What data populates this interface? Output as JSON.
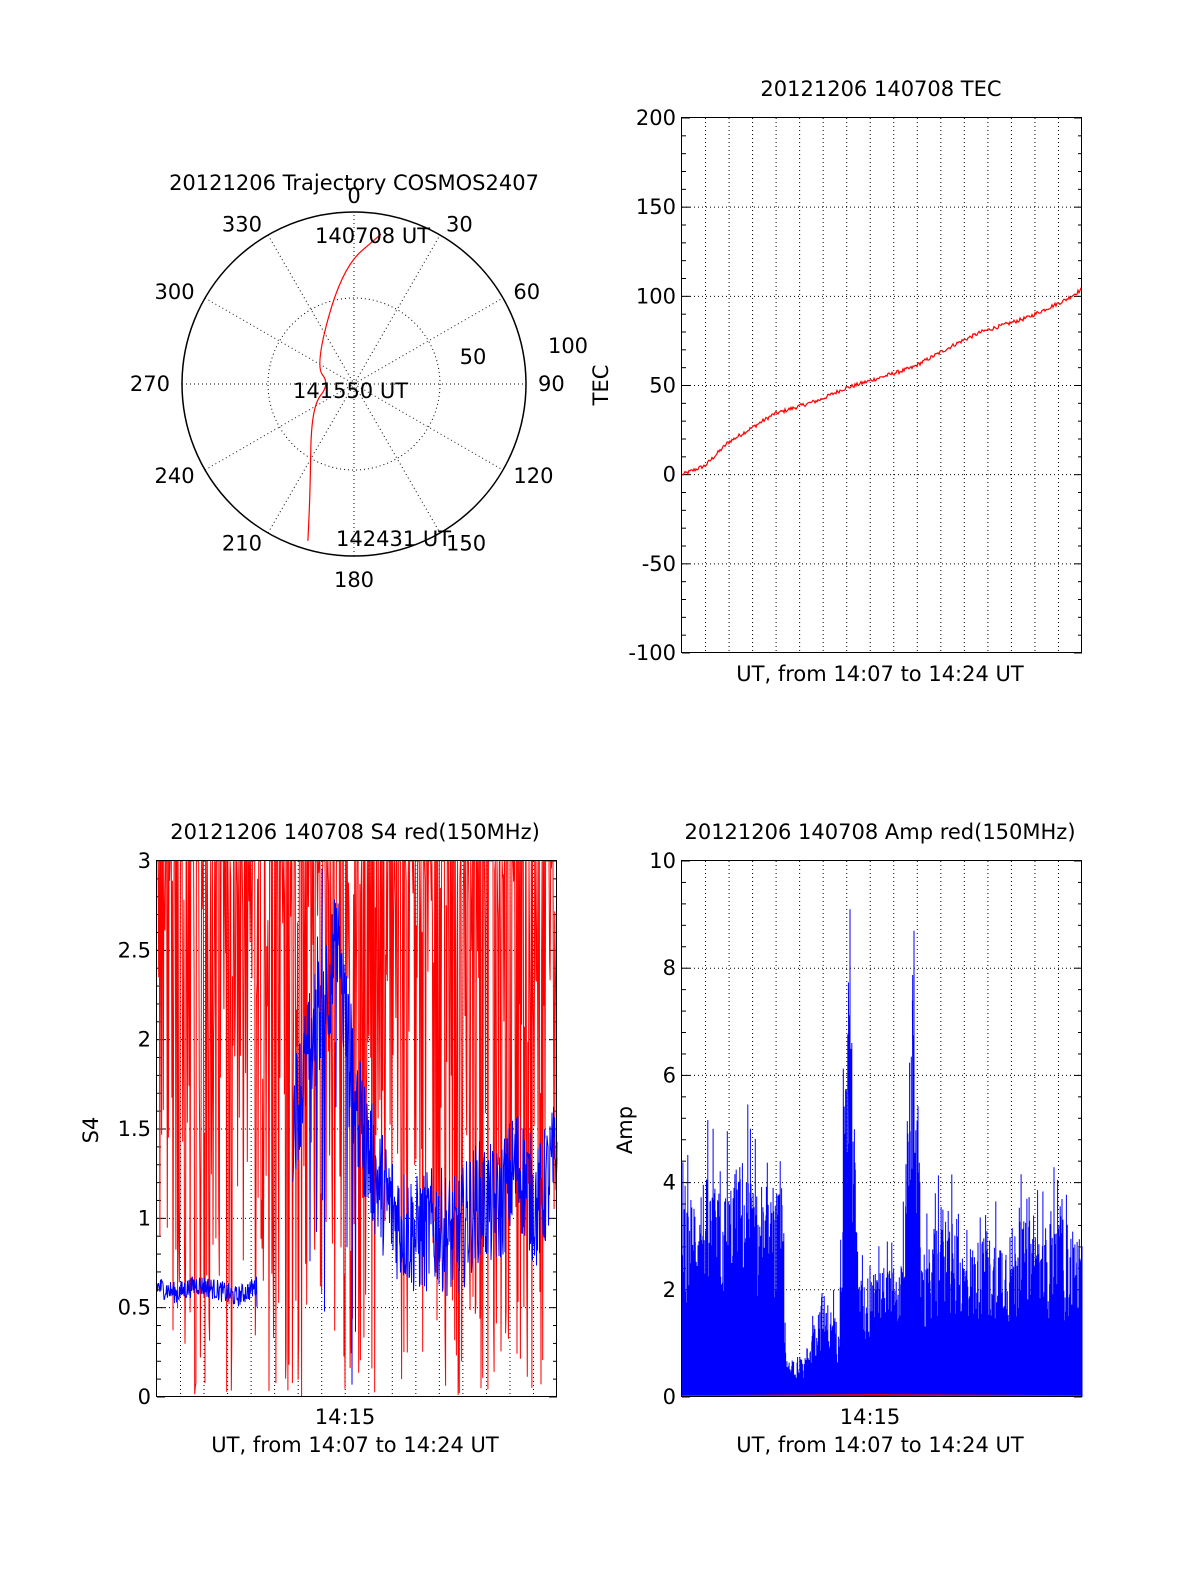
{
  "chart_data": [
    {
      "type": "polar",
      "title": "20121206 Trajectory COSMOS2407",
      "angle_labels": [
        "0",
        "30",
        "60",
        "90",
        "120",
        "150",
        "180",
        "210",
        "240",
        "270",
        "300",
        "330"
      ],
      "radial_labels": [
        "50",
        "100"
      ],
      "rlim": [
        0,
        100
      ],
      "grid": true,
      "series": [
        {
          "color": "#ff0000",
          "points": [
            [
              10.2,
              88.5
            ],
            [
              354.3,
              68.1
            ],
            [
              295.0,
              25.0
            ],
            [
              270.0,
              14.0
            ],
            [
              242.0,
              28.0
            ],
            [
              202.0,
              68.2
            ],
            [
              196.4,
              95.0
            ]
          ]
        }
      ],
      "annotations": [
        "140708 UT",
        "141550 UT",
        "142431 UT"
      ]
    },
    {
      "type": "line",
      "title": "20121206 140708 TEC",
      "xlabel": "UT, from 14:07 to 14:24 UT",
      "ylabel": "TEC",
      "ylim": [
        -100,
        200
      ],
      "yticks": [
        "200",
        "150",
        "100",
        "50",
        "0",
        "-50",
        "-100"
      ],
      "xlim": [
        0,
        1043
      ],
      "grid": true,
      "series": [
        {
          "color": "#ff0000",
          "points": [
            [
              0,
              0
            ],
            [
              60,
              5
            ],
            [
              120,
              18
            ],
            [
              180,
              26
            ],
            [
              240,
              34
            ],
            [
              300,
              38
            ],
            [
              360,
              42
            ],
            [
              420,
              48
            ],
            [
              480,
              52
            ],
            [
              540,
              56
            ],
            [
              600,
              60
            ],
            [
              660,
              67
            ],
            [
              720,
              74
            ],
            [
              780,
              80
            ],
            [
              840,
              84
            ],
            [
              900,
              88
            ],
            [
              960,
              94
            ],
            [
              1000,
              98
            ],
            [
              1043,
              104
            ]
          ]
        }
      ]
    },
    {
      "type": "line",
      "title": "20121206 140708 S4 red(150MHz)",
      "xlabel": "UT, from 14:07 to 14:24 UT",
      "ylabel": "S4",
      "ylim": [
        0,
        3
      ],
      "yticks": [
        "3",
        "2.5",
        "2",
        "1.5",
        "1",
        "0.5",
        "0"
      ],
      "xtick_labels": [
        "14:15"
      ],
      "grid": true,
      "series": [
        {
          "color": "#ff0000",
          "points": [
            [
              0.02,
              0
            ],
            [
              0.05,
              3
            ],
            [
              0.1,
              0
            ],
            [
              0.14,
              3
            ],
            [
              0.18,
              0
            ],
            [
              0.22,
              3
            ],
            [
              0.26,
              0
            ],
            [
              0.31,
              3
            ],
            [
              0.35,
              0
            ],
            [
              0.4,
              3
            ],
            [
              0.46,
              0
            ],
            [
              0.52,
              3
            ],
            [
              0.58,
              0
            ],
            [
              0.64,
              3
            ],
            [
              0.7,
              0
            ],
            [
              0.76,
              3
            ],
            [
              0.82,
              0
            ],
            [
              0.88,
              3
            ],
            [
              0.94,
              0
            ],
            [
              0.98,
              3
            ]
          ]
        },
        {
          "color": "#0000ff",
          "points": [
            [
              0.0,
              0.62
            ],
            [
              0.05,
              0.58
            ],
            [
              0.1,
              0.63
            ],
            [
              0.15,
              0.6
            ],
            [
              0.2,
              0.56
            ],
            [
              0.25,
              0.62
            ],
            [
              0.35,
              1.65
            ],
            [
              0.4,
              2.1
            ],
            [
              0.45,
              2.5
            ],
            [
              0.5,
              1.6
            ],
            [
              0.55,
              1.2
            ],
            [
              0.6,
              1.0
            ],
            [
              0.65,
              0.9
            ],
            [
              0.7,
              0.95
            ],
            [
              0.75,
              0.88
            ],
            [
              0.8,
              1.1
            ],
            [
              0.85,
              1.05
            ],
            [
              0.9,
              1.3
            ],
            [
              0.95,
              1.05
            ],
            [
              1.0,
              1.35
            ]
          ]
        }
      ]
    },
    {
      "type": "line",
      "title": "20121206 140708 Amp red(150MHz)",
      "xlabel": "UT, from 14:07 to 14:24 UT",
      "ylabel": "Amp",
      "ylim": [
        0,
        10
      ],
      "yticks": [
        "10",
        "8",
        "6",
        "4",
        "2",
        "0"
      ],
      "xtick_labels": [
        "14:15"
      ],
      "grid": true,
      "series": [
        {
          "color": "#0000ff",
          "points": [
            [
              0.0,
              3.5
            ],
            [
              0.05,
              4.2
            ],
            [
              0.1,
              3.8
            ],
            [
              0.15,
              4.5
            ],
            [
              0.2,
              3.6
            ],
            [
              0.25,
              3.9
            ],
            [
              0.26,
              0.7
            ],
            [
              0.3,
              0.6
            ],
            [
              0.35,
              2.0
            ],
            [
              0.39,
              1.4
            ],
            [
              0.42,
              9.1
            ],
            [
              0.44,
              2.2
            ],
            [
              0.5,
              2.4
            ],
            [
              0.55,
              2.5
            ],
            [
              0.58,
              8.7
            ],
            [
              0.6,
              2.3
            ],
            [
              0.65,
              3.7
            ],
            [
              0.7,
              2.8
            ],
            [
              0.75,
              3.0
            ],
            [
              0.8,
              3.1
            ],
            [
              0.85,
              3.3
            ],
            [
              0.9,
              3.2
            ],
            [
              0.95,
              3.4
            ],
            [
              1.0,
              3.0
            ]
          ]
        },
        {
          "color": "#ff0000",
          "points": [
            [
              0.0,
              0.0
            ],
            [
              0.5,
              0.02
            ],
            [
              1.0,
              0.0
            ]
          ]
        }
      ]
    }
  ]
}
